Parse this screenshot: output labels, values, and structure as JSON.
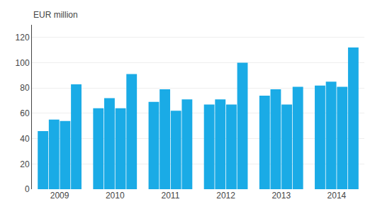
{
  "chart_data": {
    "type": "bar",
    "ylabel": "EUR million",
    "categories": [
      "2009",
      "2010",
      "2011",
      "2012",
      "2013",
      "2014"
    ],
    "color": "#1aabe6",
    "series": [
      {
        "values": [
          46,
          64,
          69,
          67,
          74,
          82
        ]
      },
      {
        "values": [
          55,
          72,
          79,
          71,
          79,
          85
        ]
      },
      {
        "values": [
          54,
          64,
          62,
          67,
          67,
          81
        ]
      },
      {
        "values": [
          83,
          91,
          71,
          100,
          81,
          112
        ]
      }
    ],
    "ylim": [
      0,
      130
    ],
    "yticks": [
      0,
      20,
      40,
      60,
      80,
      100,
      120
    ],
    "grid": true
  }
}
